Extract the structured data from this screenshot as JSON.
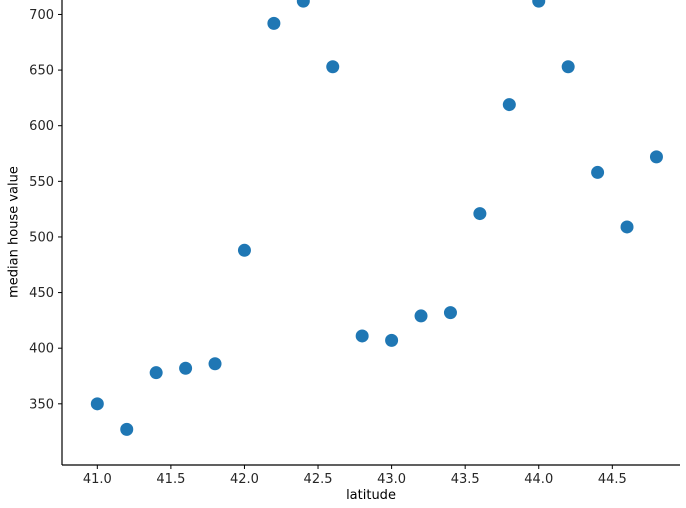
{
  "chart_data": {
    "type": "scatter",
    "title": "",
    "xlabel": "latitude",
    "ylabel": "median house value",
    "x": [
      41.0,
      41.2,
      41.4,
      41.6,
      41.8,
      42.0,
      42.2,
      42.4,
      42.6,
      42.8,
      43.0,
      43.2,
      43.4,
      43.6,
      43.8,
      44.0,
      44.2,
      44.4,
      44.6,
      44.8
    ],
    "y": [
      350,
      327,
      378,
      382,
      386,
      488,
      692,
      712,
      653,
      411,
      407,
      429,
      432,
      521,
      619,
      712,
      653,
      558,
      509,
      572
    ],
    "xticks": [
      41.0,
      41.5,
      42.0,
      42.5,
      43.0,
      43.5,
      44.0,
      44.5
    ],
    "yticks": [
      350,
      400,
      450,
      500,
      550,
      600,
      650,
      700
    ],
    "xlim": [
      40.76,
      44.96
    ],
    "ylim": [
      295,
      713
    ],
    "marker_color": "#1f77b4",
    "axis_color": "#000000",
    "tick_label_color": "#262626",
    "grid": false,
    "legend": "none"
  }
}
